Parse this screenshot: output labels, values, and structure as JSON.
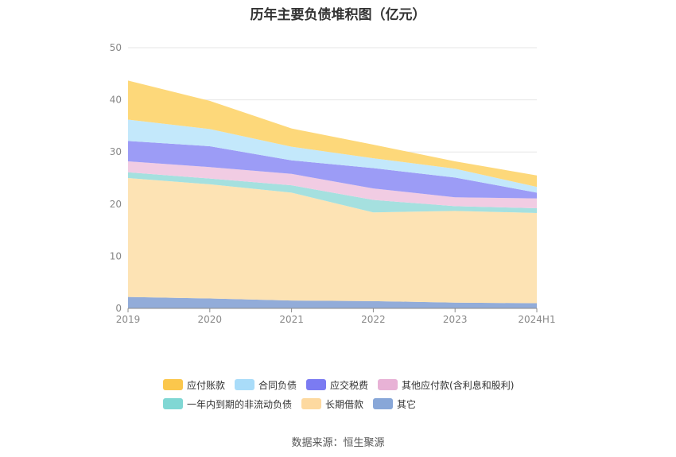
{
  "chart_data": {
    "type": "area",
    "title": "历年主要负债堆积图（亿元）",
    "categories": [
      "2019",
      "2020",
      "2021",
      "2022",
      "2023",
      "2024H1"
    ],
    "ylim": [
      0,
      50
    ],
    "yticks": [
      0,
      10,
      20,
      30,
      40,
      50
    ],
    "grid": true,
    "legend_position": "bottom",
    "series": [
      {
        "name": "其它",
        "color": "#92acd9",
        "values": [
          2.2,
          1.9,
          1.5,
          1.4,
          1.1,
          1.0
        ]
      },
      {
        "name": "长期借款",
        "color": "#fde3b4",
        "values": [
          22.8,
          21.9,
          20.7,
          17.0,
          17.6,
          17.3
        ]
      },
      {
        "name": "一年内到期的非流动负债",
        "color": "#a5e0df",
        "values": [
          1.1,
          1.1,
          1.4,
          2.4,
          0.9,
          0.9
        ]
      },
      {
        "name": "其他应付款(含利息和股利)",
        "color": "#f1cce3",
        "values": [
          2.1,
          2.2,
          2.2,
          2.2,
          1.7,
          1.9
        ]
      },
      {
        "name": "应交税费",
        "color": "#9c9cf6",
        "values": [
          3.9,
          4.0,
          2.6,
          3.9,
          3.8,
          1.1
        ]
      },
      {
        "name": "合同负债",
        "color": "#c3e8fb",
        "values": [
          4.1,
          3.3,
          2.6,
          1.9,
          1.7,
          1.1
        ]
      },
      {
        "name": "应付账款",
        "color": "#fdd87a",
        "values": [
          7.5,
          5.4,
          3.5,
          2.6,
          1.4,
          2.2
        ]
      }
    ],
    "legend_order": [
      "应付账款",
      "合同负债",
      "应交税费",
      "其他应付款(含利息和股利)",
      "一年内到期的非流动负债",
      "长期借款",
      "其它"
    ],
    "legend_colors": {
      "应付账款": "#fbc74c",
      "合同负债": "#a9dcf9",
      "应交税费": "#7b7bf2",
      "其他应付款(含利息和股利)": "#e8b2d6",
      "一年内到期的非流动负债": "#80d7d4",
      "长期借款": "#fdd9a0",
      "其它": "#88a7d8"
    }
  },
  "source_text": "数据来源：恒生聚源"
}
